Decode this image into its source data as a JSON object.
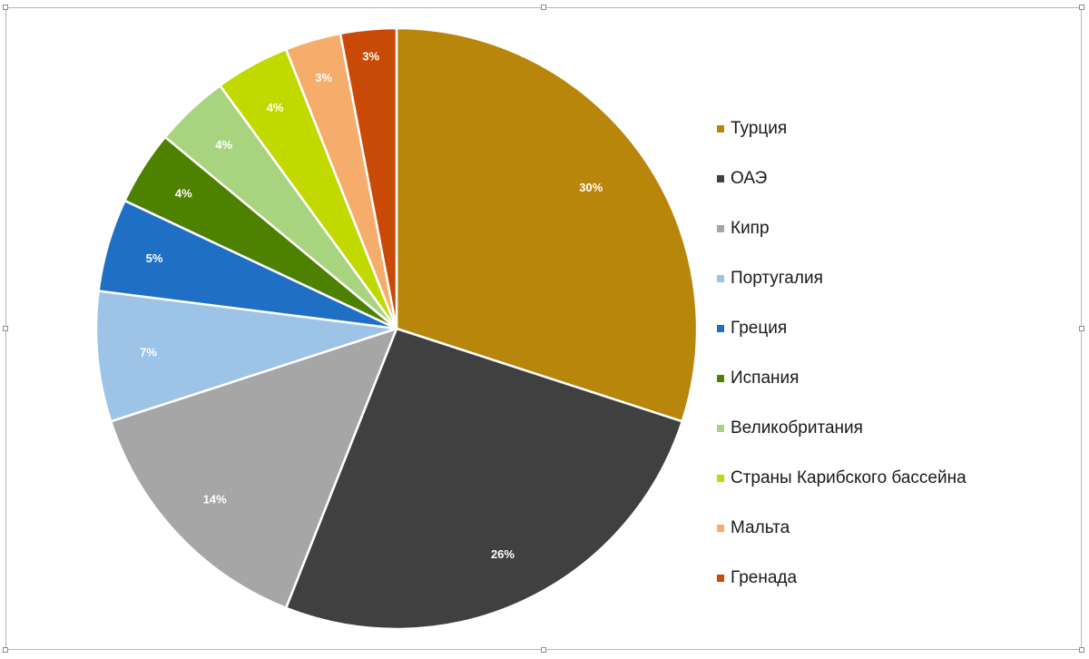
{
  "chart_data": {
    "type": "pie",
    "title": "",
    "slices": [
      {
        "label": "Турция",
        "value": 30,
        "value_label": "30%",
        "color": "#b8860b"
      },
      {
        "label": "ОАЭ",
        "value": 26,
        "value_label": "26%",
        "color": "#404040"
      },
      {
        "label": "Кипр",
        "value": 14,
        "value_label": "14%",
        "color": "#a6a6a6"
      },
      {
        "label": "Португалия",
        "value": 7,
        "value_label": "7%",
        "color": "#9dc3e6"
      },
      {
        "label": "Греция",
        "value": 5,
        "value_label": "5%",
        "color": "#1f6fc5"
      },
      {
        "label": "Испания",
        "value": 4,
        "value_label": "4%",
        "color": "#4e8100"
      },
      {
        "label": "Великобритания",
        "value": 4,
        "value_label": "4%",
        "color": "#a9d47f"
      },
      {
        "label": "Страны Карибского бассейна",
        "value": 4,
        "value_label": "4%",
        "color": "#c2d900"
      },
      {
        "label": "Мальта",
        "value": 3,
        "value_label": "3%",
        "color": "#f6ad6b"
      },
      {
        "label": "Гренада",
        "value": 3,
        "value_label": "3%",
        "color": "#c94a06"
      }
    ],
    "legend": "right",
    "data_labels": "inside"
  }
}
